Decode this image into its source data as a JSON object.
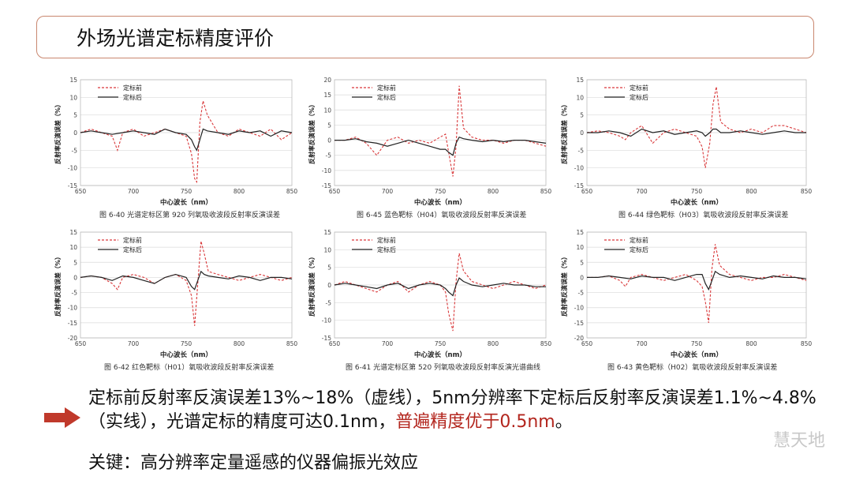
{
  "slide": {
    "title": "外场光谱定标精度评价",
    "conclusion_part1": "定标前反射率反演误差13%~18%（虚线），5nm分辨率下定标后反射率反演误差1.1%~4.8%（实线），光谱定标的精度可达0.1nm，",
    "conclusion_highlight": "普遍精度优于0.5nm",
    "conclusion_end": "。",
    "key_point": "关键：高分辨率定量遥感的仪器偏振光效应",
    "watermark": "慧天地",
    "accent_color": "#b3261e"
  },
  "chart_data": [
    {
      "type": "line",
      "caption": "图 6-40  光谱定标区第 920 列氧吸收波段反射率反演误差",
      "xlabel": "中心波长（nm）",
      "ylabel": "反射率反演误差（%）",
      "xlim": [
        650,
        850
      ],
      "ylim": [
        -15,
        15
      ],
      "xticks": [
        650,
        700,
        750,
        800,
        850
      ],
      "yticks": [
        -15,
        -10,
        -5,
        0,
        5,
        10,
        15
      ],
      "grid": true,
      "legend": "top-left",
      "series": [
        {
          "name": "定标前",
          "style": "dashed",
          "color": "#d9383a",
          "x": [
            650,
            660,
            670,
            680,
            685,
            690,
            700,
            710,
            720,
            730,
            740,
            750,
            755,
            758,
            760,
            763,
            766,
            770,
            780,
            790,
            800,
            810,
            820,
            830,
            840,
            850
          ],
          "y": [
            0,
            1,
            0,
            -1,
            -5,
            0,
            1,
            -1,
            0,
            1,
            0,
            -1,
            -6,
            -13,
            -14,
            3,
            9,
            5,
            0,
            -1,
            1,
            0,
            -1,
            1,
            -2,
            0
          ]
        },
        {
          "name": "定标后",
          "style": "solid",
          "color": "#222222",
          "x": [
            650,
            660,
            670,
            680,
            690,
            700,
            710,
            720,
            730,
            740,
            750,
            755,
            758,
            760,
            763,
            766,
            770,
            780,
            790,
            800,
            810,
            820,
            830,
            840,
            850
          ],
          "y": [
            0,
            0.5,
            0,
            -0.5,
            0,
            0.5,
            0,
            -0.5,
            1,
            0,
            -0.5,
            -2,
            -4,
            -5,
            -2,
            1,
            0.5,
            0,
            -0.5,
            0.5,
            0,
            0.5,
            -1,
            0.5,
            0
          ]
        }
      ]
    },
    {
      "type": "line",
      "caption": "图 6-45  蓝色靶标（H04）氧吸收波段反射率反演误差",
      "xlabel": "中心波长（nm）",
      "ylabel": "反射率反演误差（%）",
      "xlim": [
        650,
        850
      ],
      "ylim": [
        -15,
        20
      ],
      "xticks": [
        650,
        700,
        750,
        800,
        850
      ],
      "yticks": [
        -15,
        -10,
        -5,
        0,
        5,
        10,
        15,
        20
      ],
      "grid": true,
      "legend": "top-left",
      "series": [
        {
          "name": "定标前",
          "style": "dashed",
          "color": "#d9383a",
          "x": [
            650,
            660,
            670,
            680,
            690,
            700,
            710,
            720,
            730,
            740,
            750,
            755,
            758,
            762,
            765,
            768,
            772,
            780,
            790,
            800,
            810,
            820,
            830,
            840,
            850
          ],
          "y": [
            0,
            0,
            1,
            -1,
            -5,
            0,
            1,
            -1,
            0,
            -1,
            1,
            2,
            -4,
            -12,
            -2,
            18,
            4,
            1,
            0,
            0,
            -1,
            0,
            0,
            -1,
            -2
          ]
        },
        {
          "name": "定标后",
          "style": "solid",
          "color": "#222222",
          "x": [
            650,
            660,
            670,
            680,
            690,
            700,
            710,
            720,
            730,
            740,
            750,
            755,
            758,
            762,
            765,
            768,
            772,
            780,
            790,
            800,
            810,
            820,
            830,
            840,
            850
          ],
          "y": [
            0,
            0,
            0.5,
            -0.5,
            -1,
            -2,
            -1,
            0,
            -1,
            -2,
            -3,
            -3,
            -4,
            -5,
            -1,
            1,
            0.5,
            0,
            -0.5,
            0,
            -0.5,
            0,
            0,
            -0.5,
            -1
          ]
        }
      ]
    },
    {
      "type": "line",
      "caption": "图 6-44  绿色靶标（H03）氧吸收波段反射率反演误差",
      "xlabel": "中心波长（nm）",
      "ylabel": "反射率反演误差（%）",
      "xlim": [
        650,
        850
      ],
      "ylim": [
        -15,
        15
      ],
      "xticks": [
        650,
        700,
        750,
        800,
        850
      ],
      "yticks": [
        -15,
        -10,
        -5,
        0,
        5,
        10,
        15
      ],
      "grid": true,
      "legend": "top-left",
      "series": [
        {
          "name": "定标前",
          "style": "dashed",
          "color": "#d9383a",
          "x": [
            650,
            660,
            670,
            680,
            685,
            690,
            700,
            710,
            720,
            730,
            740,
            750,
            755,
            758,
            762,
            765,
            768,
            772,
            780,
            790,
            800,
            810,
            820,
            830,
            840,
            850
          ],
          "y": [
            0,
            0.5,
            0,
            -1,
            -2,
            0,
            2,
            -3,
            0,
            1,
            0,
            -1,
            -4,
            -10,
            -3,
            8,
            13,
            3,
            1,
            0,
            1,
            0,
            2,
            2,
            1,
            0
          ]
        },
        {
          "name": "定标后",
          "style": "solid",
          "color": "#222222",
          "x": [
            650,
            660,
            670,
            680,
            690,
            700,
            710,
            720,
            730,
            740,
            750,
            755,
            758,
            762,
            765,
            768,
            772,
            780,
            790,
            800,
            810,
            820,
            830,
            840,
            850
          ],
          "y": [
            0,
            0,
            0.5,
            0,
            -1,
            1,
            0,
            0.5,
            -0.5,
            0,
            0.5,
            0,
            -1,
            0,
            1,
            1,
            0,
            0,
            0.5,
            0,
            -0.5,
            0,
            0.5,
            0,
            0
          ]
        }
      ]
    },
    {
      "type": "line",
      "caption": "图 6-42  红色靶标（H01）氧吸收波段反射率反演误差",
      "xlabel": "中心波长（nm）",
      "ylabel": "反射率反演误差（%）",
      "xlim": [
        650,
        850
      ],
      "ylim": [
        -20,
        15
      ],
      "xticks": [
        650,
        700,
        750,
        800,
        850
      ],
      "yticks": [
        -20,
        -15,
        -10,
        -5,
        0,
        5,
        10,
        15
      ],
      "grid": true,
      "legend": "top-left",
      "series": [
        {
          "name": "定标前",
          "style": "dashed",
          "color": "#d9383a",
          "x": [
            650,
            660,
            670,
            680,
            685,
            690,
            700,
            710,
            720,
            730,
            740,
            750,
            755,
            758,
            761,
            764,
            767,
            771,
            780,
            790,
            800,
            810,
            820,
            830,
            840,
            850
          ],
          "y": [
            0,
            0.5,
            0,
            -2,
            -4,
            0,
            1,
            0,
            -2,
            0,
            1,
            -1,
            -6,
            -16,
            -2,
            12,
            8,
            2,
            1,
            0,
            -1,
            0,
            1,
            0,
            -1,
            0
          ]
        },
        {
          "name": "定标后",
          "style": "solid",
          "color": "#222222",
          "x": [
            650,
            660,
            670,
            680,
            690,
            700,
            710,
            720,
            730,
            740,
            750,
            755,
            758,
            761,
            764,
            767,
            771,
            780,
            790,
            800,
            810,
            820,
            830,
            840,
            850
          ],
          "y": [
            0,
            0.5,
            0,
            -1,
            0.5,
            0,
            -1,
            -2,
            0,
            1,
            0,
            -3,
            -4,
            -1,
            2,
            1,
            0.5,
            0,
            -0.5,
            0.5,
            0,
            -1,
            0,
            0,
            -0.5
          ]
        }
      ]
    },
    {
      "type": "line",
      "caption": "图 6-41  光谱定标区第 520 列氧吸收波段反射率反演光谱曲线",
      "xlabel": "中心波长（nm）",
      "ylabel": "反射率反演误差（%）",
      "xlim": [
        650,
        850
      ],
      "ylim": [
        -15,
        15
      ],
      "xticks": [
        650,
        700,
        750,
        800,
        850
      ],
      "yticks": [
        -15,
        -10,
        -5,
        0,
        5,
        10,
        15
      ],
      "grid": true,
      "legend": "top-left",
      "series": [
        {
          "name": "定标前",
          "style": "dashed",
          "color": "#d9383a",
          "x": [
            650,
            660,
            670,
            680,
            690,
            700,
            710,
            720,
            730,
            740,
            750,
            755,
            758,
            762,
            765,
            768,
            772,
            780,
            790,
            800,
            810,
            820,
            830,
            840,
            850
          ],
          "y": [
            0,
            1,
            0,
            -1,
            -2,
            0,
            1,
            -2,
            0,
            1,
            0,
            -2,
            -8,
            -13,
            1,
            9,
            4,
            1,
            0,
            -1,
            0,
            1,
            0,
            -1,
            0
          ]
        },
        {
          "name": "定标后",
          "style": "solid",
          "color": "#222222",
          "x": [
            650,
            660,
            670,
            680,
            690,
            700,
            710,
            720,
            730,
            740,
            750,
            755,
            758,
            762,
            765,
            768,
            772,
            780,
            790,
            800,
            810,
            820,
            830,
            840,
            850
          ],
          "y": [
            0,
            0.5,
            0,
            -0.5,
            -1,
            0,
            0.5,
            -1,
            0,
            0.5,
            0,
            -1,
            -2,
            -3,
            0,
            2,
            1,
            0,
            -0.5,
            0,
            0.5,
            0,
            0,
            -0.5,
            -0.5
          ]
        }
      ]
    },
    {
      "type": "line",
      "caption": "图 6-43  黄色靶标（H02）氧吸收波段反射率反演误差",
      "xlabel": "中心波长（nm）",
      "ylabel": "反射率反演误差（%）",
      "xlim": [
        650,
        850
      ],
      "ylim": [
        -20,
        15
      ],
      "xticks": [
        650,
        700,
        750,
        800,
        850
      ],
      "yticks": [
        -20,
        -15,
        -10,
        -5,
        0,
        5,
        10,
        15
      ],
      "grid": true,
      "legend": "top-left",
      "series": [
        {
          "name": "定标前",
          "style": "dashed",
          "color": "#d9383a",
          "x": [
            650,
            660,
            670,
            680,
            685,
            690,
            700,
            710,
            720,
            730,
            740,
            750,
            755,
            758,
            761,
            764,
            767,
            771,
            780,
            790,
            800,
            810,
            820,
            830,
            840,
            850
          ],
          "y": [
            0,
            0,
            0.5,
            -1,
            -3,
            0,
            1,
            0,
            -1,
            0,
            1,
            -1,
            -3,
            -8,
            -15,
            3,
            11,
            4,
            1,
            0,
            -1,
            0,
            0,
            1,
            0,
            -1
          ]
        },
        {
          "name": "定标后",
          "style": "solid",
          "color": "#222222",
          "x": [
            650,
            660,
            670,
            680,
            690,
            700,
            710,
            720,
            730,
            740,
            750,
            755,
            758,
            761,
            764,
            767,
            771,
            780,
            790,
            800,
            810,
            820,
            830,
            840,
            850
          ],
          "y": [
            0,
            0,
            0.5,
            0,
            -0.5,
            0.5,
            0,
            0,
            -1,
            0,
            1,
            1,
            -2,
            -4,
            -1,
            2,
            1,
            0,
            0.5,
            0,
            -0.5,
            0.5,
            0,
            0,
            -0.5
          ]
        }
      ]
    }
  ]
}
